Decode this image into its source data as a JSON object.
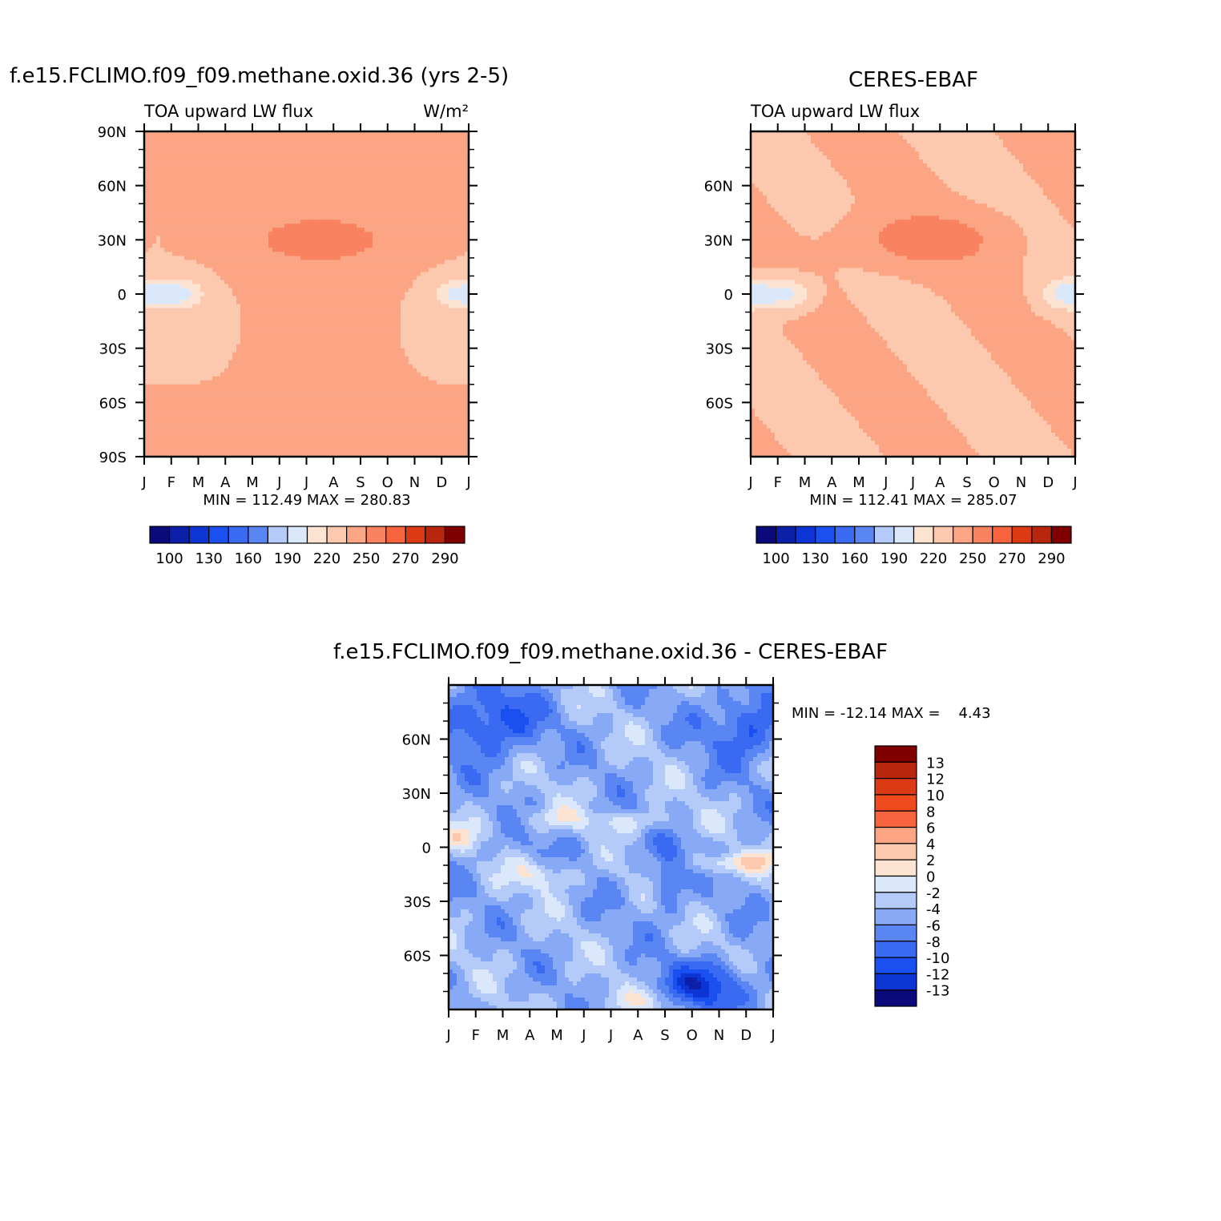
{
  "figure": {
    "units": "W/m²"
  },
  "chart_data": [
    {
      "type": "heatmap",
      "title": "f.e15.FCLIMO.f09_f09.methane.oxid.36 (yrs 2-5)",
      "subtitle_left": "TOA upward LW flux",
      "subtitle_right": "W/m²",
      "x": [
        "J",
        "F",
        "M",
        "A",
        "M",
        "J",
        "J",
        "A",
        "S",
        "O",
        "N",
        "D",
        "J"
      ],
      "y_ticks": [
        "90N",
        "60N",
        "30N",
        "0",
        "30S",
        "60S",
        "90S"
      ],
      "xlim": [
        0,
        12
      ],
      "ylim": [
        -90,
        90
      ],
      "stats": "MIN = 112.49 MAX = 280.83",
      "min": 112.49,
      "max": 280.83,
      "colorbar": {
        "orientation": "horizontal",
        "labels": [
          "100",
          "130",
          "160",
          "190",
          "220",
          "250",
          "270",
          "290"
        ],
        "levels": [
          100,
          110,
          120,
          130,
          140,
          150,
          160,
          170,
          180,
          190,
          200,
          210,
          220,
          230,
          240,
          250,
          260,
          270,
          280,
          290
        ]
      }
    },
    {
      "type": "heatmap",
      "title": "CERES-EBAF",
      "subtitle_left": "TOA upward LW flux",
      "x": [
        "J",
        "F",
        "M",
        "A",
        "M",
        "J",
        "J",
        "A",
        "S",
        "O",
        "N",
        "D",
        "J"
      ],
      "y_ticks": [
        "60N",
        "30N",
        "0",
        "30S",
        "60S"
      ],
      "xlim": [
        0,
        12
      ],
      "ylim": [
        -90,
        90
      ],
      "stats": "MIN = 112.41 MAX = 285.07",
      "min": 112.41,
      "max": 285.07,
      "colorbar": {
        "orientation": "horizontal",
        "labels": [
          "100",
          "130",
          "160",
          "190",
          "220",
          "250",
          "270",
          "290"
        ],
        "levels": [
          100,
          110,
          120,
          130,
          140,
          150,
          160,
          170,
          180,
          190,
          200,
          210,
          220,
          230,
          240,
          250,
          260,
          270,
          280,
          290
        ]
      }
    },
    {
      "type": "heatmap",
      "title": "f.e15.FCLIMO.f09_f09.methane.oxid.36 - CERES-EBAF",
      "x": [
        "J",
        "F",
        "M",
        "A",
        "M",
        "J",
        "J",
        "A",
        "S",
        "O",
        "N",
        "D",
        "J"
      ],
      "y_ticks": [
        "60N",
        "30N",
        "0",
        "30S",
        "60S"
      ],
      "xlim": [
        0,
        12
      ],
      "ylim": [
        -90,
        90
      ],
      "stats": "MIN = -12.14 MAX =    4.43",
      "min": -12.14,
      "max": 4.43,
      "colorbar": {
        "orientation": "vertical",
        "labels": [
          "13",
          "12",
          "10",
          "8",
          "6",
          "4",
          "2",
          "0",
          "-2",
          "-4",
          "-6",
          "-8",
          "-10",
          "-12",
          "-13"
        ]
      }
    }
  ],
  "colors": {
    "palette": [
      "#0a0a7a",
      "#0b1fa8",
      "#0d35d6",
      "#1a4ff0",
      "#3a6af2",
      "#5a86f3",
      "#88aaf6",
      "#b4cbf9",
      "#dbe8fc",
      "#fde3d2",
      "#fcc8ae",
      "#fba585",
      "#f98361",
      "#f7643e",
      "#f04a1f",
      "#dc3a14",
      "#b8270d",
      "#800000"
    ]
  }
}
